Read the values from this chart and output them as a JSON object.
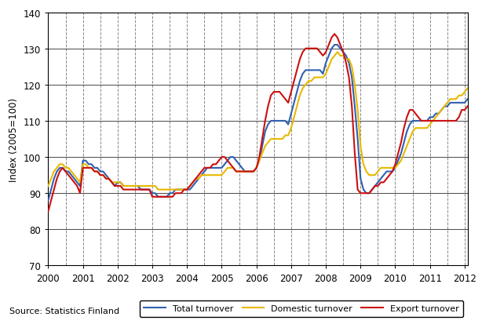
{
  "title": "",
  "ylabel": "Index (2005=100)",
  "source_text": "Source: Statistics Finland",
  "ylim": [
    70,
    140
  ],
  "yticks": [
    70,
    80,
    90,
    100,
    110,
    120,
    130,
    140
  ],
  "xlim_start": 2000.0,
  "xlim_end": 2012.083,
  "xtick_years": [
    2000,
    2001,
    2002,
    2003,
    2004,
    2005,
    2006,
    2007,
    2008,
    2009,
    2010,
    2011,
    2012
  ],
  "line_colors": {
    "total": "#3060b0",
    "domestic": "#e8b800",
    "export": "#cc1010"
  },
  "line_width": 1.5,
  "legend_labels": [
    "Total turnover",
    "Domestic turnover",
    "Export turnover"
  ],
  "total_turnover": [
    88,
    91,
    94,
    96,
    97,
    97,
    96,
    96,
    95,
    94,
    93,
    92,
    99,
    99,
    98,
    98,
    97,
    97,
    96,
    96,
    95,
    94,
    93,
    92,
    93,
    93,
    92,
    92,
    92,
    92,
    92,
    92,
    91,
    91,
    91,
    91,
    90,
    90,
    89,
    89,
    89,
    89,
    90,
    90,
    91,
    91,
    91,
    91,
    91,
    91,
    92,
    93,
    94,
    95,
    96,
    97,
    97,
    97,
    97,
    97,
    97,
    98,
    99,
    100,
    100,
    99,
    98,
    97,
    96,
    96,
    96,
    96,
    97,
    99,
    103,
    107,
    109,
    110,
    110,
    110,
    110,
    110,
    110,
    109,
    112,
    115,
    118,
    121,
    123,
    124,
    124,
    124,
    124,
    124,
    124,
    123,
    126,
    128,
    130,
    131,
    131,
    130,
    129,
    128,
    126,
    122,
    114,
    105,
    94,
    91,
    90,
    90,
    91,
    92,
    93,
    94,
    95,
    96,
    96,
    96,
    97,
    99,
    101,
    104,
    107,
    109,
    110,
    110,
    110,
    110,
    110,
    110,
    111,
    111,
    112,
    112,
    113,
    114,
    114,
    115,
    115,
    115,
    115,
    115,
    115,
    116
  ],
  "domestic_turnover": [
    92,
    94,
    96,
    97,
    98,
    98,
    97,
    97,
    96,
    95,
    94,
    93,
    98,
    98,
    97,
    97,
    96,
    96,
    95,
    95,
    94,
    94,
    93,
    93,
    93,
    93,
    92,
    92,
    92,
    92,
    92,
    92,
    92,
    92,
    92,
    92,
    92,
    92,
    91,
    91,
    91,
    91,
    91,
    91,
    91,
    91,
    91,
    91,
    91,
    92,
    93,
    94,
    94,
    95,
    95,
    95,
    95,
    95,
    95,
    95,
    95,
    96,
    97,
    97,
    97,
    96,
    96,
    96,
    96,
    96,
    96,
    96,
    97,
    99,
    101,
    103,
    104,
    105,
    105,
    105,
    105,
    105,
    106,
    106,
    108,
    111,
    114,
    117,
    119,
    120,
    121,
    121,
    122,
    122,
    122,
    122,
    123,
    125,
    127,
    128,
    129,
    128,
    128,
    127,
    127,
    125,
    120,
    113,
    103,
    98,
    96,
    95,
    95,
    95,
    96,
    97,
    97,
    97,
    97,
    97,
    97,
    98,
    99,
    101,
    103,
    105,
    107,
    108,
    108,
    108,
    108,
    108,
    109,
    110,
    111,
    112,
    113,
    114,
    115,
    116,
    116,
    116,
    117,
    117,
    118,
    119
  ],
  "export_turnover": [
    85,
    88,
    91,
    94,
    96,
    97,
    96,
    95,
    94,
    93,
    92,
    90,
    97,
    97,
    97,
    97,
    96,
    96,
    95,
    95,
    94,
    94,
    93,
    92,
    92,
    92,
    91,
    91,
    91,
    91,
    91,
    91,
    91,
    91,
    91,
    91,
    89,
    89,
    89,
    89,
    89,
    89,
    89,
    89,
    90,
    90,
    90,
    91,
    91,
    92,
    93,
    94,
    95,
    96,
    97,
    97,
    97,
    98,
    98,
    99,
    100,
    100,
    99,
    98,
    97,
    96,
    96,
    96,
    96,
    96,
    96,
    96,
    97,
    100,
    105,
    110,
    114,
    117,
    118,
    118,
    118,
    117,
    116,
    115,
    118,
    121,
    124,
    127,
    129,
    130,
    130,
    130,
    130,
    130,
    129,
    128,
    129,
    131,
    133,
    134,
    133,
    131,
    129,
    126,
    122,
    114,
    101,
    91,
    90,
    90,
    90,
    90,
    91,
    92,
    92,
    93,
    93,
    94,
    95,
    96,
    98,
    101,
    104,
    108,
    111,
    113,
    113,
    112,
    111,
    110,
    110,
    110,
    110,
    110,
    110,
    110,
    110,
    110,
    110,
    110,
    110,
    110,
    111,
    113,
    113,
    114
  ]
}
